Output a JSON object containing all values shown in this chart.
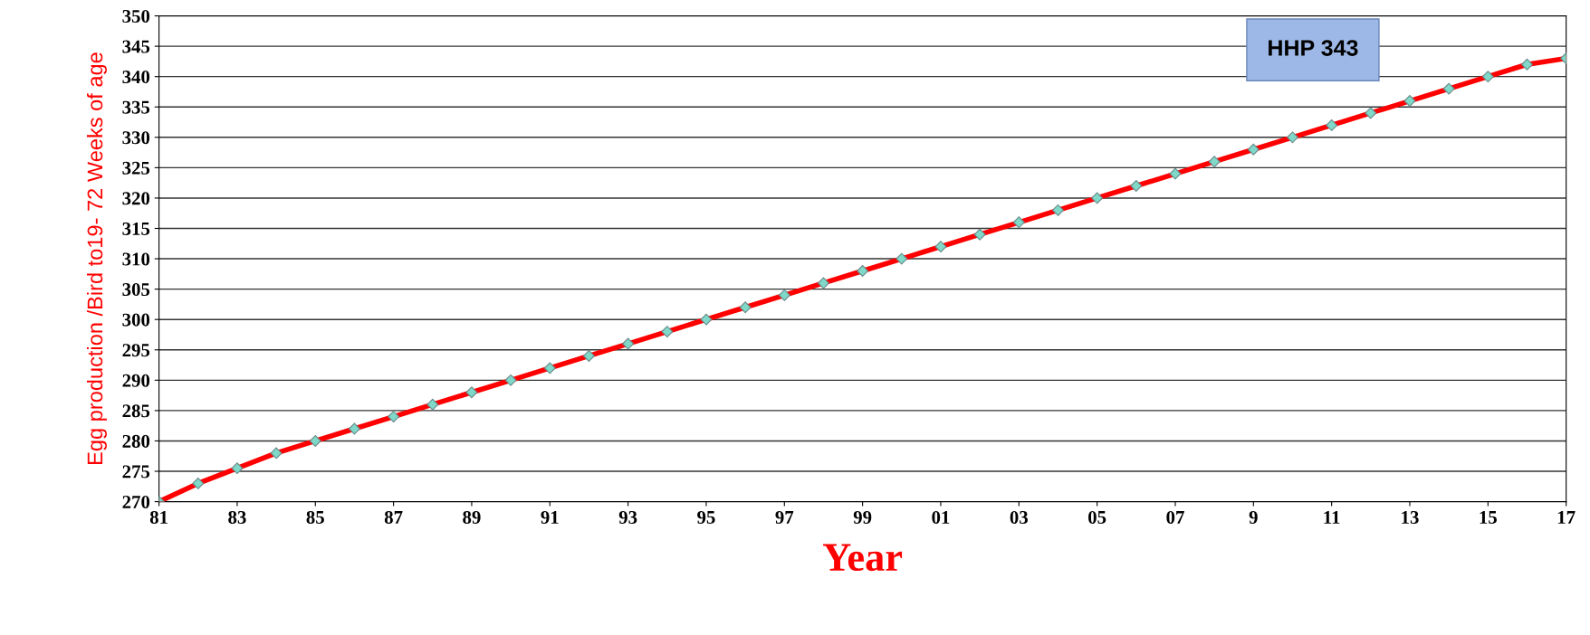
{
  "chart_data": {
    "type": "line",
    "xlabel": "Year",
    "ylabel": "Egg production /Bird to19- 72 Weeks of age",
    "categories": [
      "81",
      null,
      "83",
      null,
      "85",
      null,
      "87",
      null,
      "89",
      null,
      "91",
      null,
      "93",
      null,
      "95",
      null,
      "97",
      null,
      "99",
      null,
      "01",
      null,
      "03",
      null,
      "05",
      null,
      "07",
      null,
      "9",
      null,
      "11",
      null,
      "13",
      null,
      "15",
      null,
      "17"
    ],
    "series": [
      {
        "color": "#ff0000",
        "values": [
          270,
          273,
          275.5,
          278,
          280,
          282,
          284,
          286,
          288,
          290,
          292,
          294,
          296,
          298,
          300,
          302,
          304,
          306,
          308,
          310,
          312,
          314,
          316,
          318,
          320,
          322,
          324,
          326,
          328,
          330,
          332,
          334,
          336,
          338,
          340,
          342,
          343
        ]
      }
    ],
    "ylim": [
      270,
      350
    ],
    "yticks": [
      270,
      275,
      280,
      285,
      290,
      295,
      300,
      305,
      310,
      315,
      320,
      325,
      330,
      335,
      340,
      345,
      350
    ],
    "grid": "y",
    "marker": "diamond",
    "line_style": "solid",
    "legend": false,
    "annotations": [
      "HHP 343"
    ]
  }
}
